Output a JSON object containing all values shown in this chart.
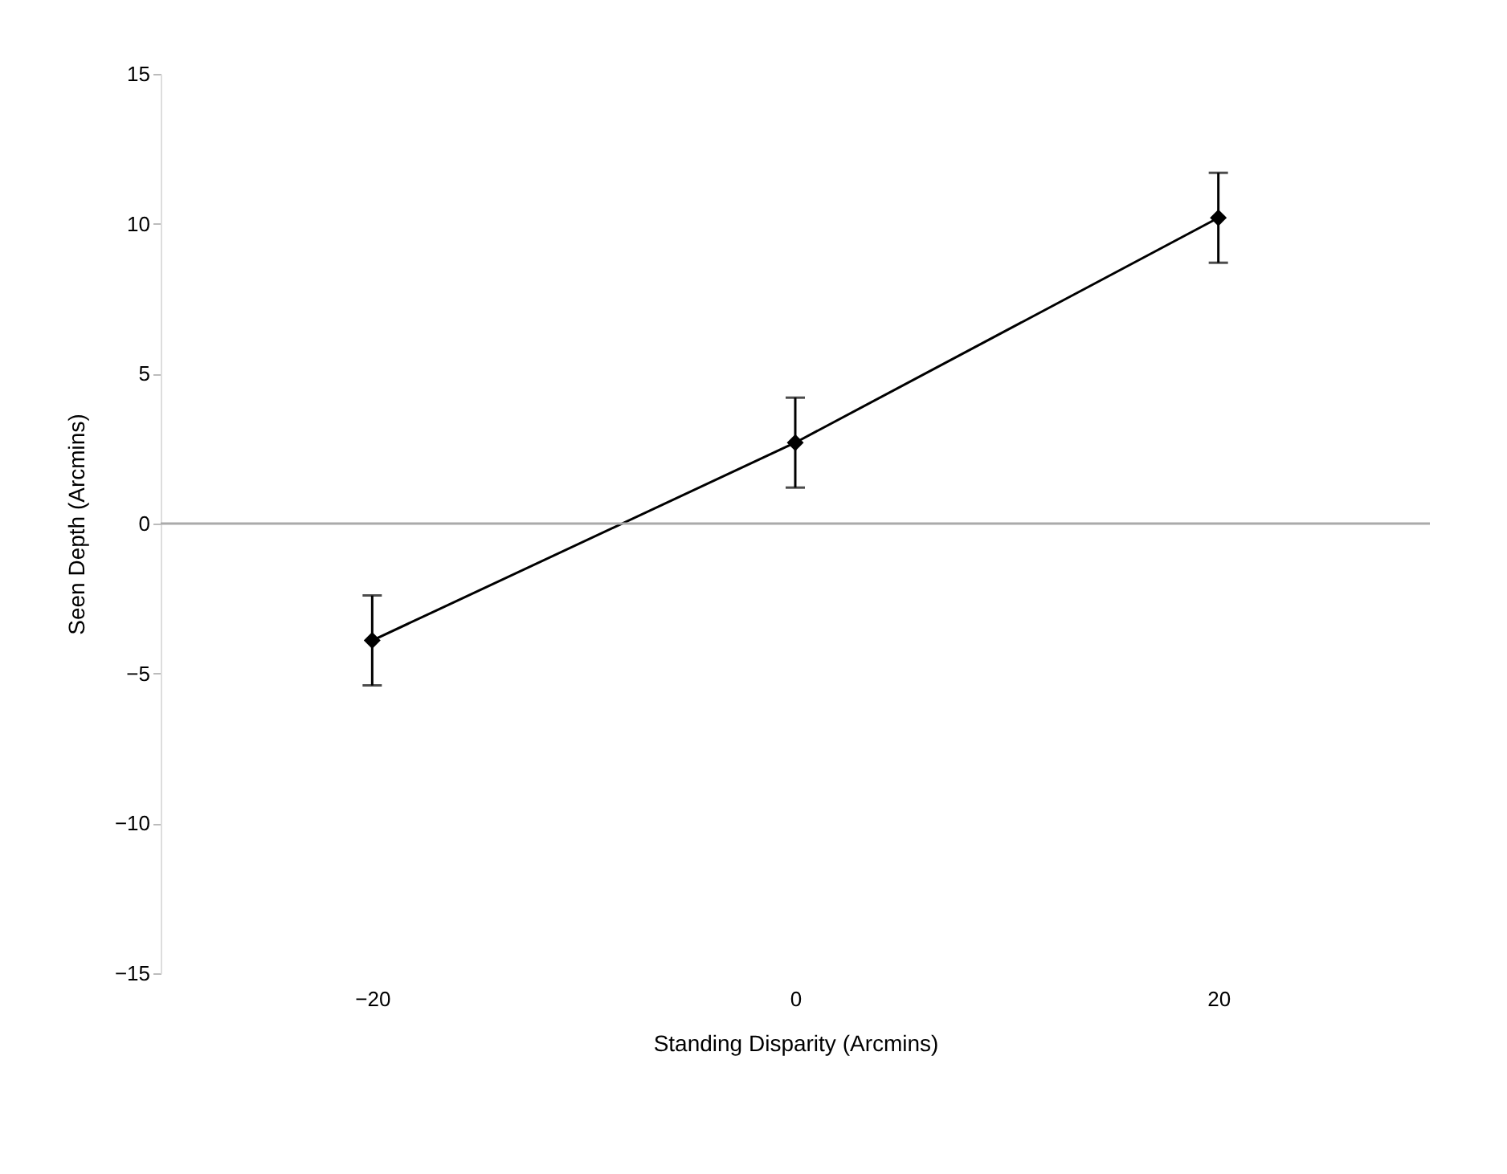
{
  "chart_data": {
    "type": "line",
    "xlabel": "Standing Disparity (Arcmins)",
    "ylabel": "Seen Depth (Arcmins)",
    "x": [
      -20,
      0,
      20
    ],
    "series": [
      {
        "color": "#000000",
        "values": [
          -3.9,
          2.7,
          10.2
        ],
        "errors": [
          1.5,
          1.5,
          1.5
        ]
      }
    ],
    "xlim": [
      -30,
      30
    ],
    "xticks": [
      -20,
      0,
      20
    ],
    "ylim": [
      -15,
      15
    ],
    "yticks": [
      -15,
      -10,
      -5,
      0,
      5,
      10,
      15
    ],
    "ref_lines": [
      {
        "axis": "y",
        "value": 0,
        "color": "#aaaaaa"
      }
    ],
    "marker": "diamond",
    "line_style": "solid",
    "grid": false
  }
}
